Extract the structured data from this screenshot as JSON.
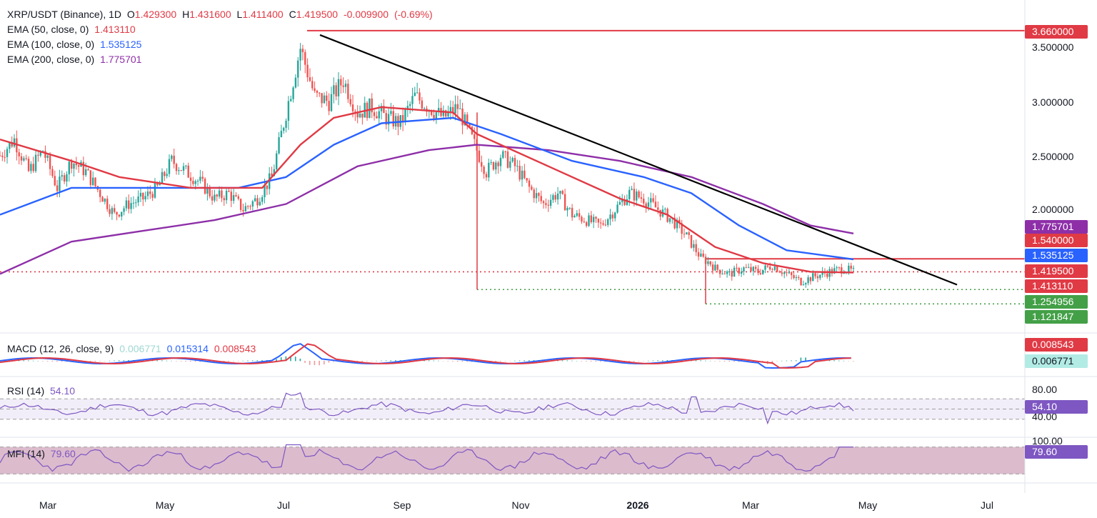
{
  "chart_data": {
    "type": "candlestick",
    "title": "XRP/USDT (Binance), 1D",
    "ohlc": {
      "open": "1.429300",
      "high": "1.431600",
      "low": "1.411400",
      "close": "1.419500",
      "change": "-0.009900",
      "change_pct": "(-0.69%)"
    },
    "legend_labels": {
      "o": "O",
      "h": "H",
      "l": "L",
      "c": "C"
    },
    "emas": [
      {
        "name": "EMA (50, close, 0)",
        "value": "1.413110",
        "color": "#e03a45"
      },
      {
        "name": "EMA (100, close, 0)",
        "value": "1.535125",
        "color": "#2962ff"
      },
      {
        "name": "EMA (200, close, 0)",
        "value": "1.775701",
        "color": "#8e2fa8"
      }
    ],
    "price_axis_ticks": [
      "3.500000",
      "3.000000",
      "2.500000",
      "2.000000"
    ],
    "price_labels": [
      {
        "value": "3.660000",
        "color": "#e03a45"
      },
      {
        "value": "1.775701",
        "color": "#8e2fa8"
      },
      {
        "value": "1.540000",
        "color": "#e03a45"
      },
      {
        "value": "1.535125",
        "color": "#2962ff"
      },
      {
        "value": "1.419500",
        "color": "#e03a45"
      },
      {
        "value": "1.413110",
        "color": "#e03a45"
      },
      {
        "value": "1.254956",
        "color": "#43a047"
      },
      {
        "value": "1.121847",
        "color": "#43a047"
      }
    ],
    "horizontal_levels": [
      {
        "price": 3.66,
        "style": "solid",
        "color": "#e03a45"
      },
      {
        "price": 1.54,
        "style": "solid",
        "color": "#e03a45"
      },
      {
        "price": 1.254956,
        "style": "dotted",
        "color": "#43a047"
      },
      {
        "price": 1.121847,
        "style": "dotted",
        "color": "#43a047"
      },
      {
        "price": 1.4195,
        "style": "dotted",
        "color": "#e03a45"
      }
    ],
    "trendline": {
      "from": {
        "month": "Jul",
        "day": 25,
        "price": 3.62
      },
      "to": {
        "month": "Jun",
        "day": 10,
        "price": 1.3
      },
      "color": "#000000"
    },
    "price_series": [
      [
        0,
        2.5
      ],
      [
        6,
        2.65
      ],
      [
        12,
        2.35
      ],
      [
        18,
        2.55
      ],
      [
        24,
        2.2
      ],
      [
        30,
        2.45
      ],
      [
        36,
        2.35
      ],
      [
        42,
        2.15
      ],
      [
        48,
        1.95
      ],
      [
        54,
        2.05
      ],
      [
        60,
        2.1
      ],
      [
        66,
        2.2
      ],
      [
        72,
        2.45
      ],
      [
        78,
        2.35
      ],
      [
        84,
        2.25
      ],
      [
        90,
        2.1
      ],
      [
        96,
        2.15
      ],
      [
        102,
        2.0
      ],
      [
        108,
        2.1
      ],
      [
        114,
        2.3
      ],
      [
        120,
        2.9
      ],
      [
        126,
        3.5
      ],
      [
        132,
        3.05
      ],
      [
        138,
        3.0
      ],
      [
        144,
        3.2
      ],
      [
        150,
        2.9
      ],
      [
        156,
        2.95
      ],
      [
        162,
        2.85
      ],
      [
        168,
        2.8
      ],
      [
        174,
        3.05
      ],
      [
        180,
        2.95
      ],
      [
        186,
        2.85
      ],
      [
        192,
        2.95
      ],
      [
        198,
        2.65
      ],
      [
        204,
        2.35
      ],
      [
        210,
        2.5
      ],
      [
        216,
        2.4
      ],
      [
        222,
        2.2
      ],
      [
        228,
        2.05
      ],
      [
        234,
        2.15
      ],
      [
        240,
        1.95
      ],
      [
        246,
        1.9
      ],
      [
        252,
        1.85
      ],
      [
        258,
        2.0
      ],
      [
        264,
        2.15
      ],
      [
        270,
        2.1
      ],
      [
        276,
        2.0
      ],
      [
        282,
        1.9
      ],
      [
        288,
        1.75
      ],
      [
        294,
        1.55
      ],
      [
        298,
        1.5
      ],
      [
        300,
        1.45
      ],
      [
        306,
        1.4
      ],
      [
        312,
        1.45
      ],
      [
        318,
        1.42
      ],
      [
        324,
        1.48
      ],
      [
        330,
        1.4
      ],
      [
        336,
        1.33
      ],
      [
        342,
        1.38
      ],
      [
        348,
        1.42
      ],
      [
        354,
        1.45
      ],
      [
        358,
        1.4195
      ]
    ],
    "ema_series": {
      "ema50": [
        [
          0,
          2.65
        ],
        [
          30,
          2.45
        ],
        [
          50,
          2.3
        ],
        [
          80,
          2.2
        ],
        [
          110,
          2.2
        ],
        [
          126,
          2.6
        ],
        [
          140,
          2.85
        ],
        [
          160,
          2.95
        ],
        [
          190,
          2.9
        ],
        [
          200,
          2.7
        ],
        [
          230,
          2.4
        ],
        [
          260,
          2.1
        ],
        [
          280,
          1.95
        ],
        [
          300,
          1.65
        ],
        [
          320,
          1.5
        ],
        [
          340,
          1.42
        ],
        [
          358,
          1.41311
        ]
      ],
      "ema100": [
        [
          0,
          1.95
        ],
        [
          30,
          2.2
        ],
        [
          60,
          2.2
        ],
        [
          100,
          2.2
        ],
        [
          120,
          2.3
        ],
        [
          140,
          2.6
        ],
        [
          160,
          2.8
        ],
        [
          190,
          2.85
        ],
        [
          210,
          2.7
        ],
        [
          240,
          2.45
        ],
        [
          270,
          2.3
        ],
        [
          290,
          2.15
        ],
        [
          310,
          1.85
        ],
        [
          330,
          1.62
        ],
        [
          358,
          1.535125
        ]
      ],
      "ema200": [
        [
          0,
          1.4
        ],
        [
          30,
          1.7
        ],
        [
          60,
          1.8
        ],
        [
          90,
          1.9
        ],
        [
          120,
          2.05
        ],
        [
          150,
          2.4
        ],
        [
          180,
          2.55
        ],
        [
          200,
          2.6
        ],
        [
          230,
          2.55
        ],
        [
          260,
          2.45
        ],
        [
          290,
          2.3
        ],
        [
          320,
          2.05
        ],
        [
          340,
          1.85
        ],
        [
          358,
          1.775701
        ]
      ]
    },
    "x_labels": [
      "Mar",
      "May",
      "Jul",
      "Sep",
      "Nov",
      "2026",
      "Mar",
      "May",
      "Jul"
    ],
    "panes": {
      "macd": {
        "name": "MACD (12, 26, close, 9)",
        "hist": "0.006771",
        "macd": "0.015314",
        "signal": "0.008543",
        "axis_labels": [
          "0.008543",
          "0.006771"
        ],
        "colors": {
          "hist": "#26a69a",
          "macd": "#2962ff",
          "signal": "#e03a45"
        }
      },
      "rsi": {
        "name": "RSI (14)",
        "value": "54.10",
        "axis_ticks": [
          "80.00",
          "40.00"
        ],
        "bands": [
          70,
          30
        ],
        "color": "#7e57c2"
      },
      "mfi": {
        "name": "MFI (14)",
        "value": "79.60",
        "axis_ticks": [
          "100.00"
        ],
        "bands": [
          80,
          20
        ],
        "color": "#7e57c2"
      }
    }
  }
}
